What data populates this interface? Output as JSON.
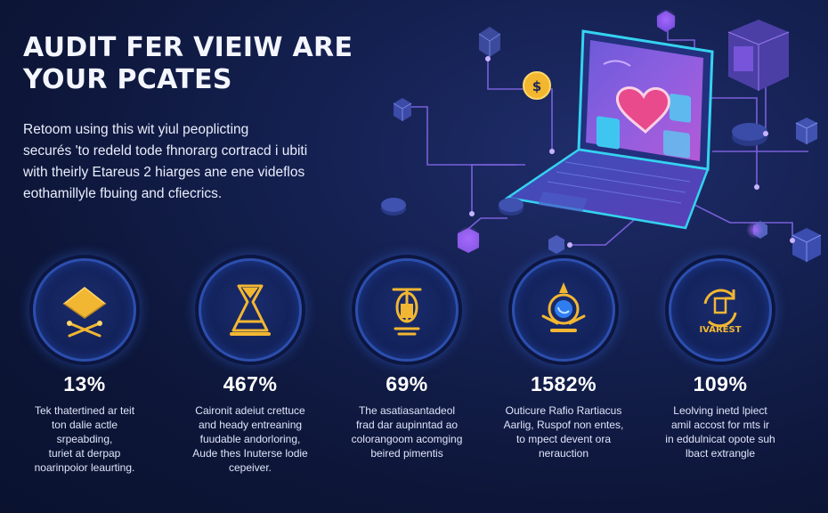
{
  "header": {
    "title_lines": [
      "AUDIT FER VIEIW ARE",
      "YOUR PCATES"
    ]
  },
  "intro": {
    "lines": [
      "Retoom using this wit yiul peoplicting",
      "securés 'to redeld tode fhnorarg cortracd i ubiti",
      "with theirly Etareus 2 hiarges ane ene videflos",
      "eothamillyle fbuing and cfiecrics."
    ]
  },
  "illustration": {
    "device_icon": "laptop-icon",
    "screen_icon": "heart-icon",
    "coin_icon": "coin-icon",
    "accent_colors": [
      "#8b5cf6",
      "#22d3ee",
      "#ec4899",
      "#f4c542"
    ]
  },
  "stats": [
    {
      "icon": "gem-icon",
      "value": "13%",
      "desc_lines": [
        "Tek thatertined ar teit",
        "ton dalie actle",
        "srpeabding,",
        "turiet at derpap",
        "noarinpoior leaurting."
      ]
    },
    {
      "icon": "hourglass-icon",
      "value": "467%",
      "desc_lines": [
        "Caironit adeiut crettuce",
        "and heady entreaning",
        "fuudable andorloring,",
        "Aude thes Inuterse lodie",
        "cepeiver."
      ]
    },
    {
      "icon": "anvil-icon",
      "value": "69%",
      "desc_lines": [
        "The asatiasantadeol",
        "frad dar aupinntad ao",
        "colorangoom acomging",
        "beired pimentis"
      ]
    },
    {
      "icon": "orb-icon",
      "value": "1582%",
      "desc_lines": [
        "Outicure Rafio Rartiacus",
        "Aarlig, Ruspof non entes,",
        "to mpect devent ora",
        "nerauction"
      ]
    },
    {
      "icon": "refresh-badge-icon",
      "badge_text": "IVAREST",
      "value": "109%",
      "desc_lines": [
        "Leolving inetd lpiect",
        "amil accost for mts ir",
        "in eddulnicat opote suh",
        "lbact extrangle"
      ]
    }
  ]
}
